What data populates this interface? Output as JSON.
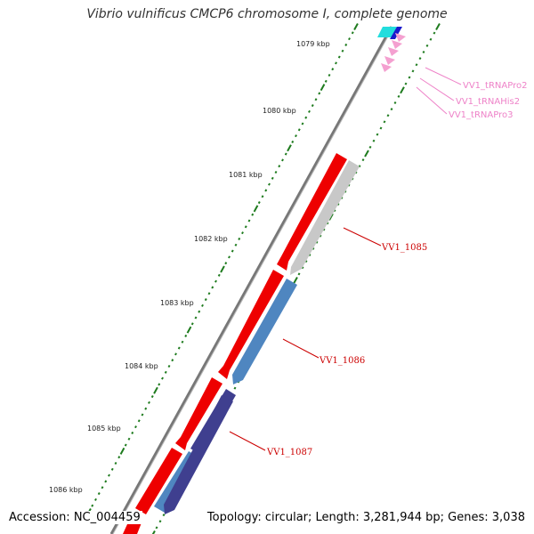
{
  "title": "Vibrio vulnificus CMCP6 chromosome I, complete genome",
  "footer": {
    "accession": "Accession: NC_004459",
    "topology": "Topology: circular; Length: 3,281,944 bp; Genes: 3,038"
  },
  "kbp_ticks": [
    "1079 kbp",
    "1080 kbp",
    "1081 kbp",
    "1082 kbp",
    "1083 kbp",
    "1084 kbp",
    "1085 kbp",
    "1086 kbp"
  ],
  "gene_labels": [
    "VV1_1085",
    "VV1_1086",
    "VV1_1087"
  ],
  "trna_labels": [
    "VV1_tRNAPro2",
    "VV1_tRNAHis2",
    "VV1_tRNAPro3"
  ],
  "colors": {
    "backbone": "#8c8c8c",
    "forward_gene": "#ee0000",
    "reverse_gene_grey": "#c8c8c8",
    "reverse_gene_blue": "#4f86c0",
    "reverse_gene_navy": "#3f3f8f",
    "trna": "#f4a0d0",
    "tick": "#1e7b1e",
    "gene_label": "#cc0000",
    "trna_label": "#ee82c8"
  }
}
